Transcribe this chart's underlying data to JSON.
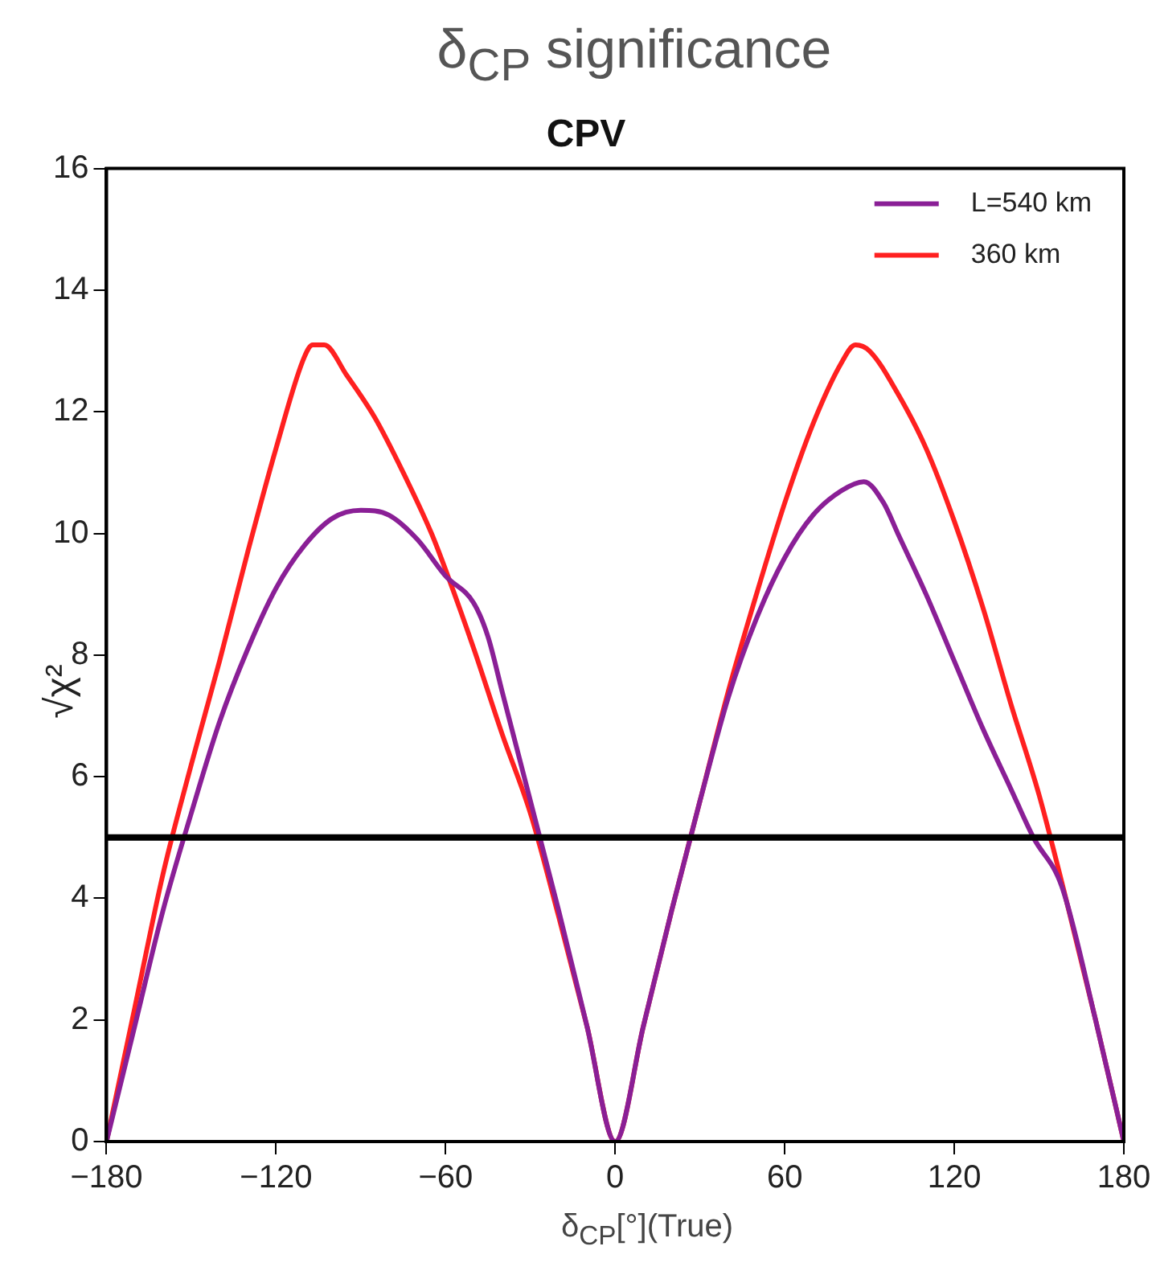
{
  "chart_data": {
    "type": "line",
    "title": "δ$_{CP}$ significance",
    "subtitle": "CPV",
    "xlabel": "δ$_{CP}$[°](True)",
    "ylabel": "√χ²",
    "xlim": [
      -180,
      180
    ],
    "xticks": [
      -180,
      -120,
      -60,
      0,
      60,
      120,
      180
    ],
    "ylim": [
      0,
      16
    ],
    "yticks": [
      0,
      2,
      4,
      6,
      8,
      10,
      12,
      14,
      16
    ],
    "grid": false,
    "legend": "top right",
    "marker": "none",
    "line_style": "solid",
    "ref_lines": [
      {
        "axis": "y",
        "value": 5,
        "color": "#000000"
      }
    ],
    "series": [
      {
        "name": "L=540 km",
        "color": "#8a1f96",
        "x": [
          -180,
          -170,
          -160,
          -150,
          -140,
          -130,
          -120,
          -110,
          -100,
          -90,
          -80,
          -70,
          -60,
          -50,
          -45,
          -40,
          -30,
          -20,
          -10,
          0,
          10,
          20,
          30,
          40,
          50,
          60,
          70,
          80,
          88,
          95,
          100,
          110,
          120,
          130,
          140,
          148,
          158,
          170,
          180
        ],
        "values": [
          0,
          1.9,
          3.8,
          5.4,
          6.9,
          8.1,
          9.1,
          9.8,
          10.25,
          10.38,
          10.3,
          9.9,
          9.3,
          8.85,
          8.3,
          7.4,
          5.6,
          3.8,
          1.9,
          0,
          1.9,
          3.8,
          5.6,
          7.3,
          8.6,
          9.6,
          10.3,
          10.7,
          10.85,
          10.5,
          10,
          9,
          7.9,
          6.8,
          5.8,
          5,
          4.2,
          2,
          0
        ]
      },
      {
        "name": "360 km",
        "color": "#ff2020",
        "x": [
          -180,
          -170,
          -160,
          -150,
          -140,
          -130,
          -120,
          -110,
          -107,
          -103,
          -95,
          -85,
          -75,
          -65,
          -60,
          -50,
          -40,
          -30,
          -20,
          -10,
          0,
          10,
          20,
          30,
          40,
          50,
          60,
          70,
          80,
          85,
          90,
          100,
          110,
          120,
          130,
          140,
          150,
          160,
          170,
          180
        ],
        "values": [
          0,
          2.2,
          4.4,
          6.2,
          7.9,
          9.7,
          11.4,
          12.9,
          13.1,
          13.1,
          12.6,
          11.9,
          11,
          10,
          9.4,
          8.1,
          6.7,
          5.4,
          3.7,
          1.9,
          0,
          1.9,
          3.8,
          5.6,
          7.4,
          9,
          10.5,
          11.8,
          12.8,
          13.1,
          13,
          12.3,
          11.4,
          10.2,
          8.8,
          7.2,
          5.7,
          3.9,
          2,
          0
        ]
      }
    ]
  }
}
